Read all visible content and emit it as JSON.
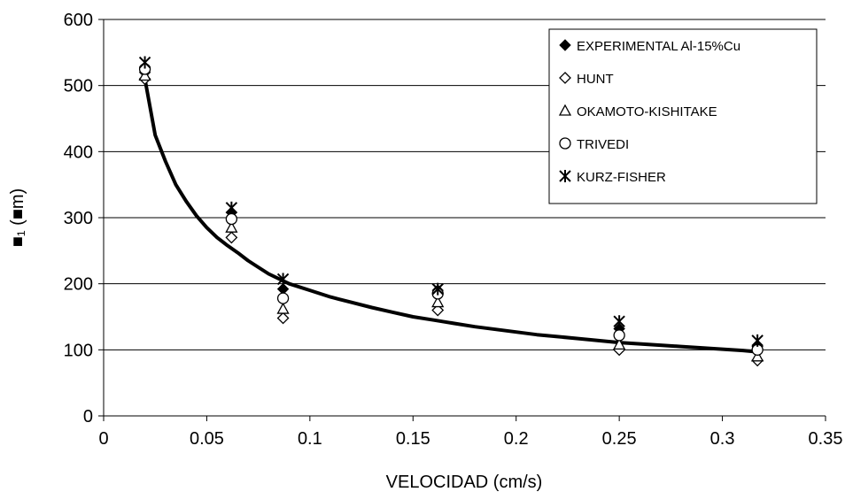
{
  "chart_data": {
    "type": "scatter",
    "title": "",
    "xlabel": "VELOCIDAD  (cm/s)",
    "ylabel": "■₁ (■m)",
    "xlim": [
      0,
      0.35
    ],
    "ylim": [
      0,
      600
    ],
    "xticks": [
      "0",
      "0.05",
      "0.1",
      "0.15",
      "0.2",
      "0.25",
      "0.3",
      "0.35"
    ],
    "yticks": [
      "0",
      "100",
      "200",
      "300",
      "400",
      "500",
      "600"
    ],
    "grid": "horizontal",
    "legend_position": "top-right",
    "series": [
      {
        "name": "EXPERIMENTAL Al-15%Cu",
        "marker": "filled-diamond",
        "x": [
          0.02,
          0.062,
          0.087,
          0.162,
          0.25,
          0.317
        ],
        "y": [
          520,
          308,
          192,
          190,
          132,
          105
        ]
      },
      {
        "name": "HUNT",
        "marker": "open-diamond",
        "x": [
          0.02,
          0.062,
          0.087,
          0.162,
          0.25,
          0.317
        ],
        "y": [
          510,
          270,
          148,
          160,
          100,
          84
        ]
      },
      {
        "name": "OKAMOTO-KISHITAKE",
        "marker": "open-triangle",
        "x": [
          0.02,
          0.062,
          0.087,
          0.162,
          0.25,
          0.317
        ],
        "y": [
          515,
          285,
          162,
          172,
          108,
          90
        ]
      },
      {
        "name": "TRIVEDI",
        "marker": "open-circle",
        "x": [
          0.02,
          0.062,
          0.087,
          0.162,
          0.25,
          0.317
        ],
        "y": [
          525,
          298,
          178,
          185,
          122,
          100
        ]
      },
      {
        "name": "KURZ-FISHER",
        "marker": "asterisk",
        "x": [
          0.02,
          0.062,
          0.087,
          0.162,
          0.25,
          0.317
        ],
        "y": [
          535,
          315,
          207,
          192,
          143,
          114
        ]
      }
    ],
    "fit_curve": {
      "x": [
        0.02,
        0.025,
        0.03,
        0.035,
        0.04,
        0.045,
        0.05,
        0.055,
        0.06,
        0.065,
        0.07,
        0.075,
        0.08,
        0.09,
        0.1,
        0.11,
        0.12,
        0.13,
        0.14,
        0.15,
        0.16,
        0.17,
        0.18,
        0.19,
        0.2,
        0.21,
        0.22,
        0.23,
        0.24,
        0.25,
        0.26,
        0.27,
        0.28,
        0.29,
        0.3,
        0.31,
        0.317
      ],
      "y": [
        510,
        425,
        385,
        350,
        325,
        303,
        285,
        270,
        258,
        247,
        235,
        225,
        215,
        200,
        190,
        180,
        172,
        164,
        157,
        150,
        145,
        140,
        135,
        131,
        127,
        123,
        120,
        117,
        114,
        111,
        109,
        107,
        105,
        103,
        101,
        99,
        97
      ]
    }
  }
}
